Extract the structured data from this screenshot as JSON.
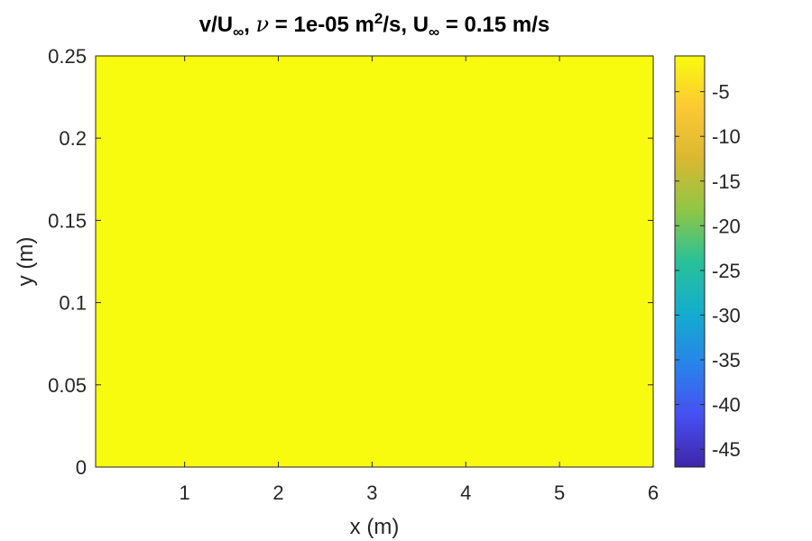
{
  "chart_data": {
    "type": "heatmap",
    "title": {
      "part1": "v/U",
      "sub1": "∞",
      "part2": ", ",
      "nu_symbol": "ν",
      "part3": " = 1e-05 m",
      "sup": "2",
      "part4": "/s, U",
      "sub2": "∞",
      "part5": " = 0.15 m/s"
    },
    "xlabel": "x (m)",
    "ylabel": "y (m)",
    "xlim": [
      0.05,
      6
    ],
    "ylim": [
      0,
      0.25
    ],
    "xticks": [
      1,
      2,
      3,
      4,
      5,
      6
    ],
    "xtick_labels": [
      "1",
      "2",
      "3",
      "4",
      "5",
      "6"
    ],
    "yticks": [
      0,
      0.05,
      0.1,
      0.15,
      0.2,
      0.25
    ],
    "ytick_labels": [
      "0",
      "0.05",
      "0.1",
      "0.15",
      "0.2",
      "0.25"
    ],
    "colorbar": {
      "clim": [
        -47,
        -1
      ],
      "ticks": [
        -45,
        -40,
        -35,
        -30,
        -25,
        -20,
        -15,
        -10,
        -5
      ],
      "tick_labels": [
        "-45",
        "-40",
        "-35",
        "-30",
        "-25",
        "-20",
        "-15",
        "-10",
        "-5"
      ],
      "colormap": "parula"
    },
    "field": {
      "description_free": true,
      "variable": "v/U∞",
      "nu": 1e-05,
      "U_inf": 0.15,
      "x_range": [
        0.05,
        6
      ],
      "y_range": [
        0,
        0.25
      ],
      "min_value": -47,
      "max_value": -1
    },
    "grid": false
  }
}
